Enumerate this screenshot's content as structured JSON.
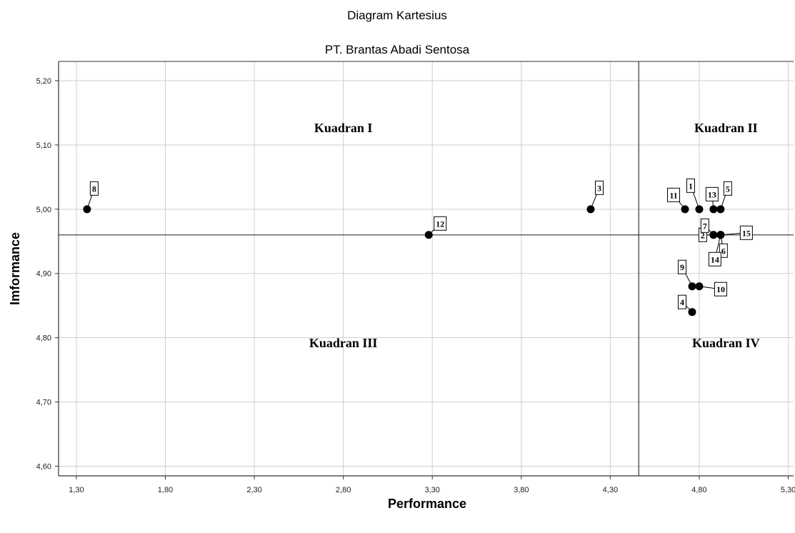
{
  "chart_data": {
    "type": "scatter",
    "title": "Diagram Kartesius",
    "subtitle": "PT. Brantas Abadi Sentosa",
    "xlabel": "Performance",
    "ylabel": "Imformance",
    "xlim": [
      1.2,
      5.33
    ],
    "ylim": [
      4.585,
      5.23
    ],
    "x_ticks": [
      "1,30",
      "1,80",
      "2,30",
      "2,80",
      "3,30",
      "3,80",
      "4,30",
      "4,80",
      "5,30"
    ],
    "x_tick_values": [
      1.3,
      1.8,
      2.3,
      2.8,
      3.3,
      3.8,
      4.3,
      4.8,
      5.3
    ],
    "y_ticks": [
      "4,60",
      "4,70",
      "4,80",
      "4,90",
      "5,00",
      "5,10",
      "5,20"
    ],
    "y_tick_values": [
      4.6,
      4.7,
      4.8,
      4.9,
      5.0,
      5.1,
      5.2
    ],
    "grid": true,
    "reference_lines": {
      "x": 4.46,
      "y": 4.96
    },
    "quadrants": [
      {
        "label": "Kuadran I",
        "x": 2.8,
        "y": 5.12
      },
      {
        "label": "Kuadran II",
        "x": 4.95,
        "y": 5.12
      },
      {
        "label": "Kuadran III",
        "x": 2.8,
        "y": 4.785
      },
      {
        "label": "Kuadran IV",
        "x": 4.95,
        "y": 4.785
      }
    ],
    "points": [
      {
        "label": "1",
        "x": 4.8,
        "y": 5.0
      },
      {
        "label": "2",
        "x": 4.88,
        "y": 4.96
      },
      {
        "label": "3",
        "x": 4.19,
        "y": 5.0
      },
      {
        "label": "4",
        "x": 4.76,
        "y": 4.84
      },
      {
        "label": "5",
        "x": 4.92,
        "y": 5.0
      },
      {
        "label": "6",
        "x": 4.92,
        "y": 4.96
      },
      {
        "label": "7",
        "x": 4.88,
        "y": 4.96
      },
      {
        "label": "8",
        "x": 1.36,
        "y": 5.0
      },
      {
        "label": "9",
        "x": 4.76,
        "y": 4.88
      },
      {
        "label": "10",
        "x": 4.8,
        "y": 4.88
      },
      {
        "label": "11",
        "x": 4.72,
        "y": 5.0
      },
      {
        "label": "12",
        "x": 3.28,
        "y": 4.96
      },
      {
        "label": "13",
        "x": 4.88,
        "y": 5.0
      },
      {
        "label": "14",
        "x": 4.92,
        "y": 4.96
      },
      {
        "label": "15",
        "x": 4.92,
        "y": 4.96
      }
    ]
  }
}
